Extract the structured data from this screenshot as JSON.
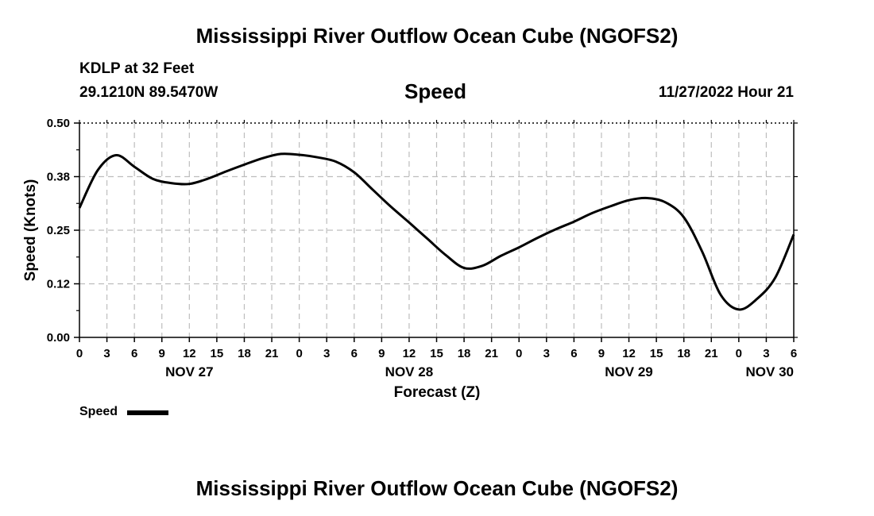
{
  "header": {
    "title": "Mississippi River Outflow Ocean Cube (NGOFS2)",
    "station": "KDLP at 32 Feet",
    "coords": "29.1210N  89.5470W",
    "chart_title": "Speed",
    "datetime": "11/27/2022 Hour 21"
  },
  "footer": {
    "title": "Mississippi River Outflow Ocean Cube (NGOFS2)"
  },
  "legend": {
    "label": "Speed"
  },
  "chart_data": {
    "type": "line",
    "title": "Speed",
    "xlabel": "Forecast (Z)",
    "ylabel": "Speed (Knots)",
    "ylim": [
      0,
      0.5
    ],
    "y_ticks": [
      "0.00",
      "0.12",
      "0.25",
      "0.38",
      "0.50"
    ],
    "y_tick_values": [
      0,
      0.125,
      0.25,
      0.375,
      0.5
    ],
    "xlim_hours": [
      0,
      78
    ],
    "x_tick_labels": [
      "0",
      "3",
      "6",
      "9",
      "12",
      "15",
      "18",
      "21",
      "0",
      "3",
      "6",
      "9",
      "12",
      "15",
      "18",
      "21",
      "0",
      "3",
      "6",
      "9",
      "12",
      "15",
      "18",
      "21",
      "0",
      "3",
      "6"
    ],
    "day_labels": [
      {
        "label": "NOV 27",
        "hour": 12
      },
      {
        "label": "NOV 28",
        "hour": 36
      },
      {
        "label": "NOV 29",
        "hour": 60
      },
      {
        "label": "NOV 30",
        "hour": 78
      }
    ],
    "grid": true,
    "series": [
      {
        "name": "Speed",
        "color": "#000000",
        "x": [
          0,
          2,
          4,
          6,
          8,
          10,
          12,
          14,
          16,
          18,
          20,
          22,
          24,
          26,
          28,
          30,
          32,
          34,
          36,
          38,
          40,
          42,
          44,
          46,
          48,
          50,
          52,
          54,
          56,
          58,
          60,
          62,
          64,
          66,
          68,
          70,
          72,
          74,
          76,
          78
        ],
        "y": [
          0.302,
          0.39,
          0.425,
          0.398,
          0.37,
          0.36,
          0.358,
          0.37,
          0.387,
          0.403,
          0.418,
          0.428,
          0.426,
          0.42,
          0.41,
          0.385,
          0.345,
          0.305,
          0.268,
          0.23,
          0.192,
          0.162,
          0.167,
          0.19,
          0.21,
          0.232,
          0.252,
          0.27,
          0.29,
          0.306,
          0.32,
          0.325,
          0.315,
          0.28,
          0.2,
          0.1,
          0.065,
          0.09,
          0.14,
          0.24
        ]
      }
    ]
  }
}
